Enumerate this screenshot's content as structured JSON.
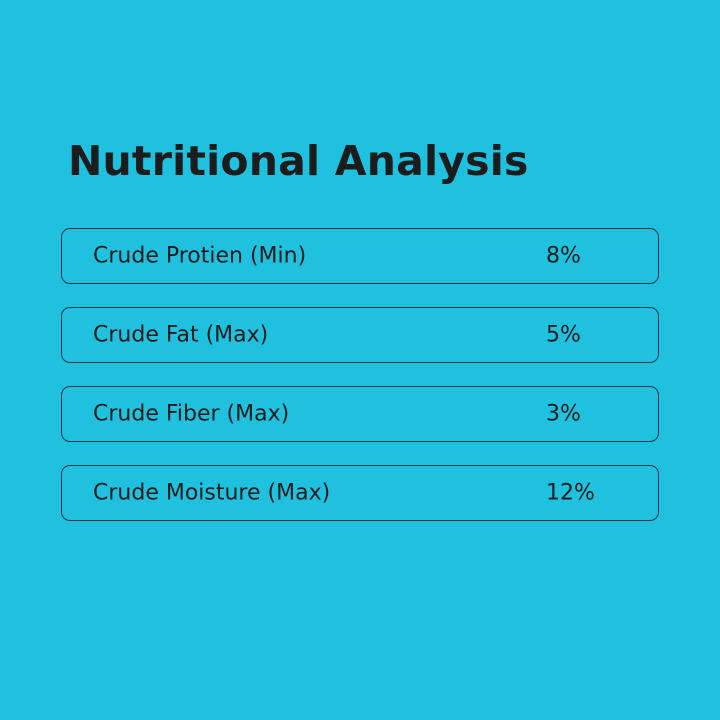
{
  "title": "Nutritional Analysis",
  "rows": [
    {
      "label": "Crude Protien (Min)",
      "value": "8%"
    },
    {
      "label": "Crude Fat (Max)",
      "value": "5%"
    },
    {
      "label": "Crude Fiber (Max)",
      "value": "3%"
    },
    {
      "label": "Crude Moisture (Max)",
      "value": "12%"
    }
  ],
  "colors": {
    "background": "#1fc1df",
    "text": "#1c1c1c",
    "border": "#1c3440"
  }
}
